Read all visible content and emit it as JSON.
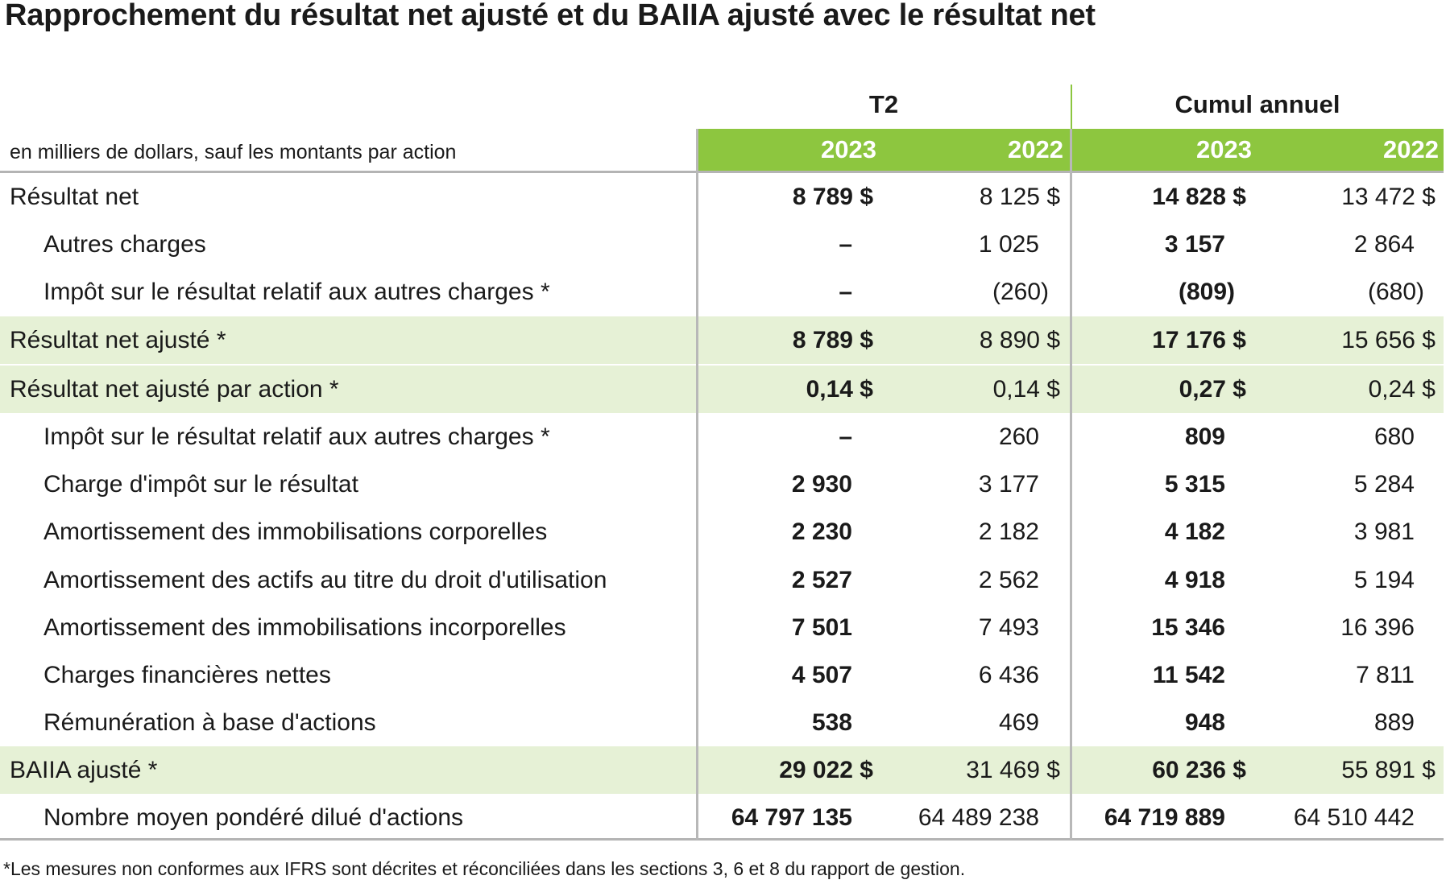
{
  "title": "Rapprochement du résultat net ajusté et du BAIIA ajusté avec le résultat net",
  "header": {
    "group1": "T2",
    "group2": "Cumul annuel",
    "units": "en milliers de dollars, sauf les montants par action",
    "years": [
      "2023",
      "2022",
      "2023",
      "2022"
    ]
  },
  "rows": [
    {
      "label": "Résultat net",
      "v": [
        "8 789 $",
        "8 125 $",
        "14 828 $",
        "13 472 $"
      ]
    },
    {
      "label": "Autres charges",
      "v": [
        "–",
        "1 025",
        "3 157",
        "2 864"
      ]
    },
    {
      "label": "Impôt sur le résultat relatif aux autres charges *",
      "v": [
        "–",
        "(260)",
        "(809)",
        "(680)"
      ]
    },
    {
      "label": "Résultat net ajusté *",
      "v": [
        "8 789 $",
        "8 890 $",
        "17 176 $",
        "15 656 $"
      ]
    },
    {
      "label": "Résultat net ajusté par action *",
      "v": [
        "0,14 $",
        "0,14 $",
        "0,27 $",
        "0,24 $"
      ]
    },
    {
      "label": "Impôt sur le résultat relatif aux autres charges *",
      "v": [
        "–",
        "260",
        "809",
        "680"
      ]
    },
    {
      "label": "Charge d'impôt sur le résultat",
      "v": [
        "2 930",
        "3 177",
        "5 315",
        "5 284"
      ]
    },
    {
      "label": "Amortissement des immobilisations corporelles",
      "v": [
        "2 230",
        "2 182",
        "4 182",
        "3 981"
      ]
    },
    {
      "label": "Amortissement des actifs au titre du droit d'utilisation",
      "v": [
        "2 527",
        "2 562",
        "4 918",
        "5 194"
      ]
    },
    {
      "label": "Amortissement des immobilisations incorporelles",
      "v": [
        "7 501",
        "7 493",
        "15 346",
        "16 396"
      ]
    },
    {
      "label": "Charges financières nettes",
      "v": [
        "4 507",
        "6 436",
        "11 542",
        "7 811"
      ]
    },
    {
      "label": "Rémunération à base d'actions",
      "v": [
        "538",
        "469",
        "948",
        "889"
      ]
    },
    {
      "label": "BAIIA ajusté *",
      "v": [
        "29 022 $",
        "31 469 $",
        "60 236 $",
        "55 891 $"
      ]
    },
    {
      "label": "Nombre moyen pondéré dilué d'actions",
      "v": [
        "64 797 135",
        "64 489 238",
        "64 719 889",
        "64 510 442"
      ]
    }
  ],
  "footnote": "*Les mesures non conformes aux IFRS sont décrites et réconciliées dans les sections 3, 6 et 8 du rapport de gestion.",
  "colors": {
    "accent_green": "#8dc63f",
    "highlight_row": "#e6f1d6",
    "rule_gray": "#b4b4b4"
  }
}
